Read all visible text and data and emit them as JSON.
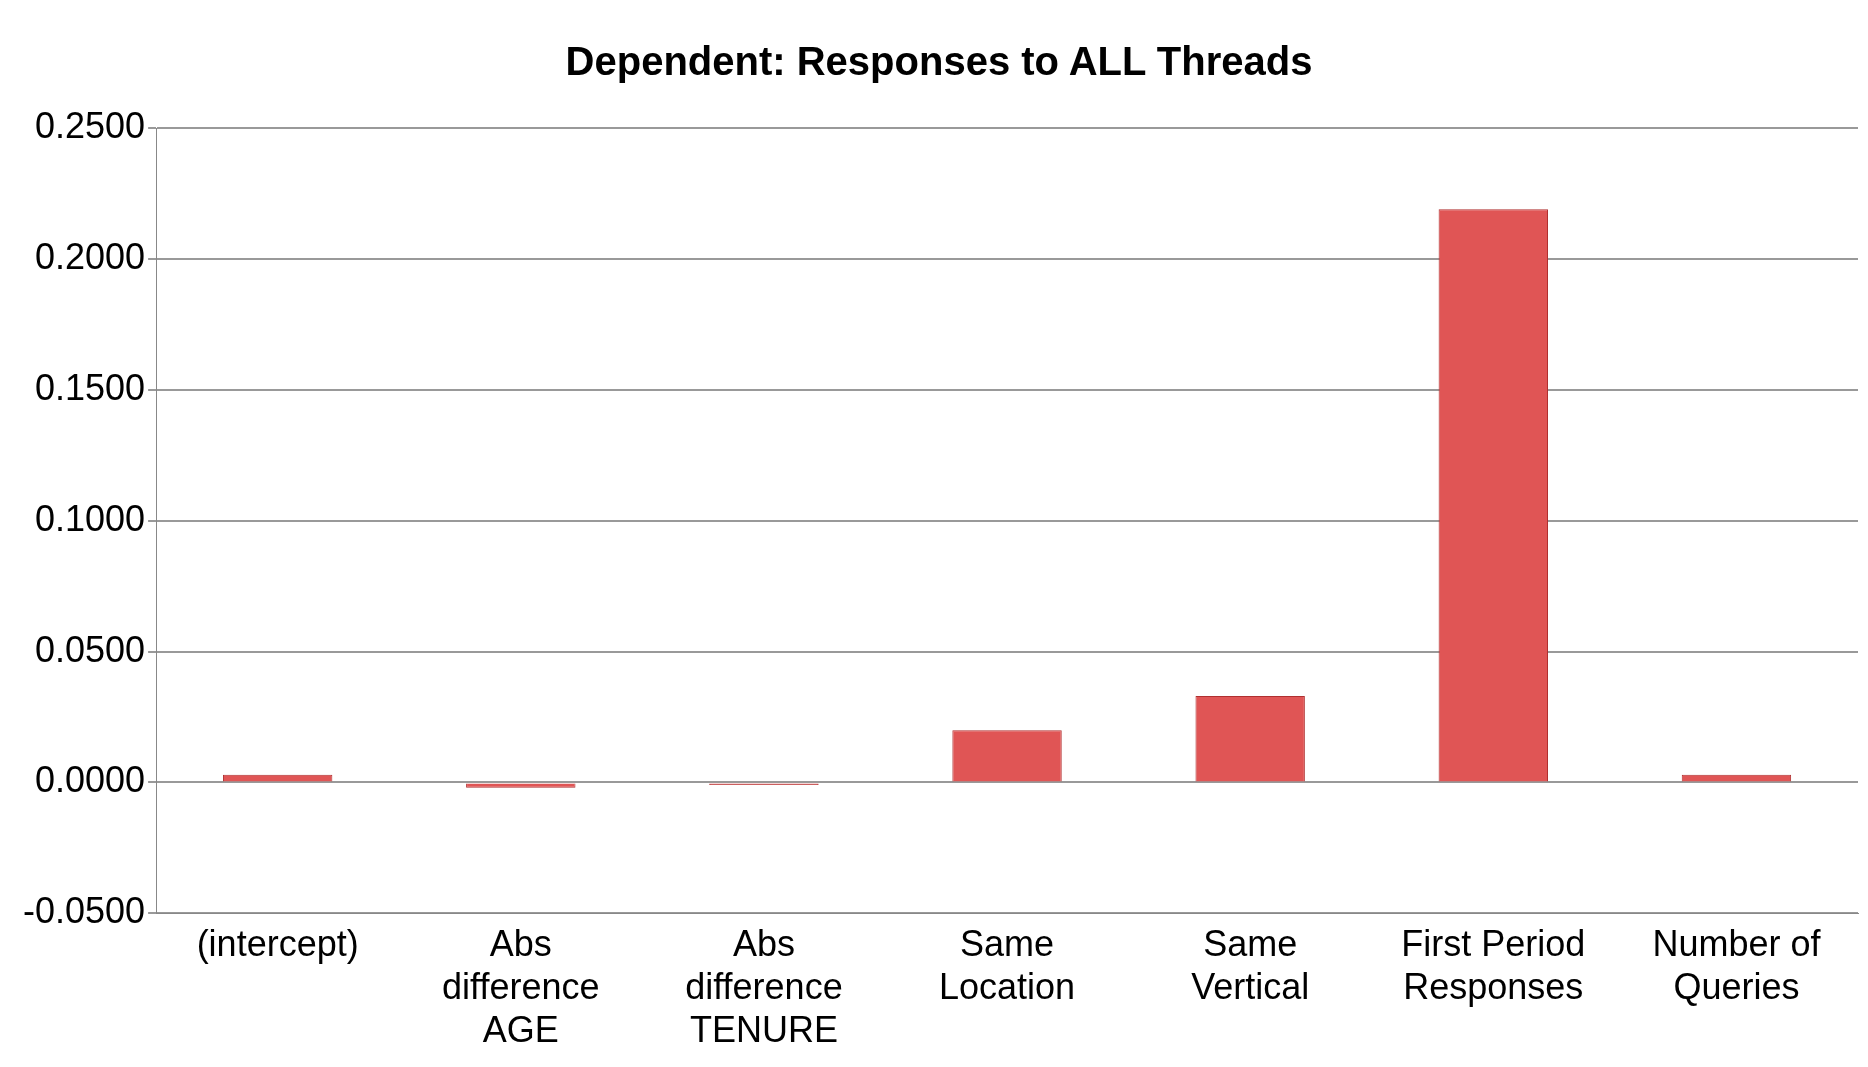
{
  "chart_data": {
    "type": "bar",
    "title": "Dependent: Responses to ALL Threads",
    "categories": [
      "(intercept)",
      "Abs difference AGE",
      "Abs difference TENURE",
      "Same Location",
      "Same Vertical",
      "First Period Responses",
      "Number of Queries"
    ],
    "values": [
      0.003,
      -0.002,
      -0.001,
      0.02,
      0.033,
      0.219,
      0.003
    ],
    "color": "#e05555",
    "ylim": [
      -0.05,
      0.25
    ],
    "yticks": [
      {
        "value": -0.05,
        "label": "-0.0500"
      },
      {
        "value": 0,
        "label": "0.0000"
      },
      {
        "value": 0.05,
        "label": "0.0500"
      },
      {
        "value": 0.1,
        "label": "0.1000"
      },
      {
        "value": 0.15,
        "label": "0.1500"
      },
      {
        "value": 0.2,
        "label": "0.2000"
      },
      {
        "value": 0.25,
        "label": "0.2500"
      }
    ],
    "grid": "y",
    "legend": false
  }
}
